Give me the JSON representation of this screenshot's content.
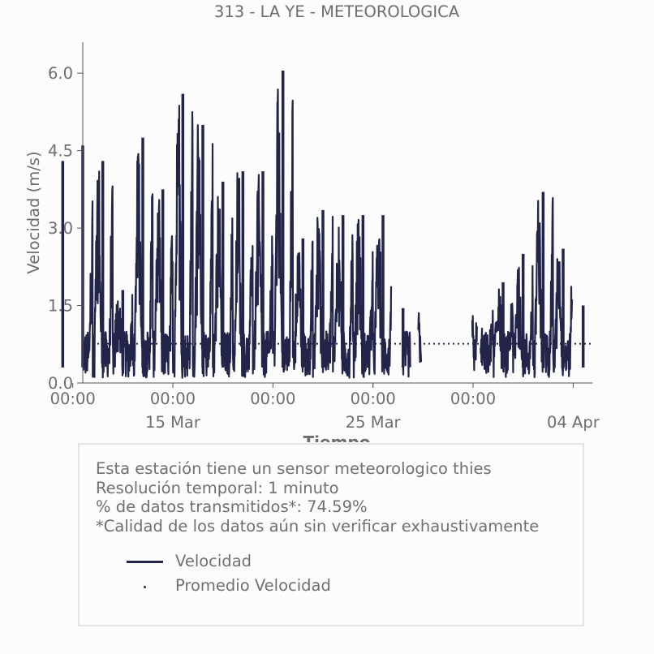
{
  "chart_data": {
    "type": "line",
    "title": "313 - LA YE - METEOROLOGICA",
    "xlabel": "Tiempo",
    "ylabel": "Velocidad (m/s)",
    "ylim": [
      0,
      6.6
    ],
    "yticks": [
      "0.0",
      "1.5",
      "3.0",
      "4.5",
      "6.0"
    ],
    "xlim": [
      "2024-03-10 12:00",
      "2024-04-04 23:00"
    ],
    "x_major_ticks": [
      {
        "x": "2024-03-10 00:00",
        "label": "00:00"
      },
      {
        "x": "2024-03-15 00:00",
        "label": "00:00"
      },
      {
        "x": "2024-03-20 00:00",
        "label": "00:00"
      },
      {
        "x": "2024-03-25 00:00",
        "label": "00:00"
      },
      {
        "x": "2024-03-30 00:00",
        "label": "00:00"
      }
    ],
    "x_date_labels": [
      {
        "x": "2024-03-15",
        "label": "15 Mar"
      },
      {
        "x": "2024-03-25",
        "label": "25 Mar"
      },
      {
        "x": "2024-04-04",
        "label": "04 Apr"
      }
    ],
    "grid": false,
    "series": [
      {
        "name": "Velocidad",
        "color": "#23244a",
        "style": "solid",
        "daily_peaks": [
          {
            "x": "2024-03-09 00:00",
            "y": 4.3
          },
          {
            "x": "2024-03-10 00:00",
            "y": 4.6
          },
          {
            "x": "2024-03-11 00:00",
            "y": 4.3
          },
          {
            "x": "2024-03-12 00:00",
            "y": 1.8
          },
          {
            "x": "2024-03-13 00:00",
            "y": 4.75
          },
          {
            "x": "2024-03-14 00:00",
            "y": 3.75
          },
          {
            "x": "2024-03-15 00:00",
            "y": 5.6
          },
          {
            "x": "2024-03-16 00:00",
            "y": 5.0
          },
          {
            "x": "2024-03-17 00:00",
            "y": 3.9
          },
          {
            "x": "2024-03-18 00:00",
            "y": 4.1
          },
          {
            "x": "2024-03-19 00:00",
            "y": 4.1
          },
          {
            "x": "2024-03-20 00:00",
            "y": 6.05
          },
          {
            "x": "2024-03-21 00:00",
            "y": 2.8
          },
          {
            "x": "2024-03-22 00:00",
            "y": 3.35
          },
          {
            "x": "2024-03-23 00:00",
            "y": 3.25
          },
          {
            "x": "2024-03-24 00:00",
            "y": 3.25
          },
          {
            "x": "2024-03-25 00:00",
            "y": 3.25
          },
          {
            "x": "2024-03-26 00:00",
            "y": 1.45
          },
          {
            "x": "2024-03-31 00:00",
            "y": 1.95
          },
          {
            "x": "2024-04-01 00:00",
            "y": 2.5
          },
          {
            "x": "2024-04-02 00:00",
            "y": 3.7
          },
          {
            "x": "2024-04-03 00:00",
            "y": 2.6
          },
          {
            "x": "2024-04-04 00:00",
            "y": 1.5
          }
        ]
      },
      {
        "name": "Promedio Velocidad",
        "color": "#23244a",
        "style": "dotted",
        "y": 0.76
      }
    ]
  },
  "info": {
    "line1": "Esta estación tiene un sensor meteorologico thies",
    "line2": "Resolución temporal: 1 minuto",
    "line3": "% de datos transmitidos*: 74.59%",
    "line4": "*Calidad de los datos aún sin verificar exhaustivamente"
  },
  "legend": {
    "item1": "Velocidad",
    "item2": "Promedio Velocidad"
  }
}
